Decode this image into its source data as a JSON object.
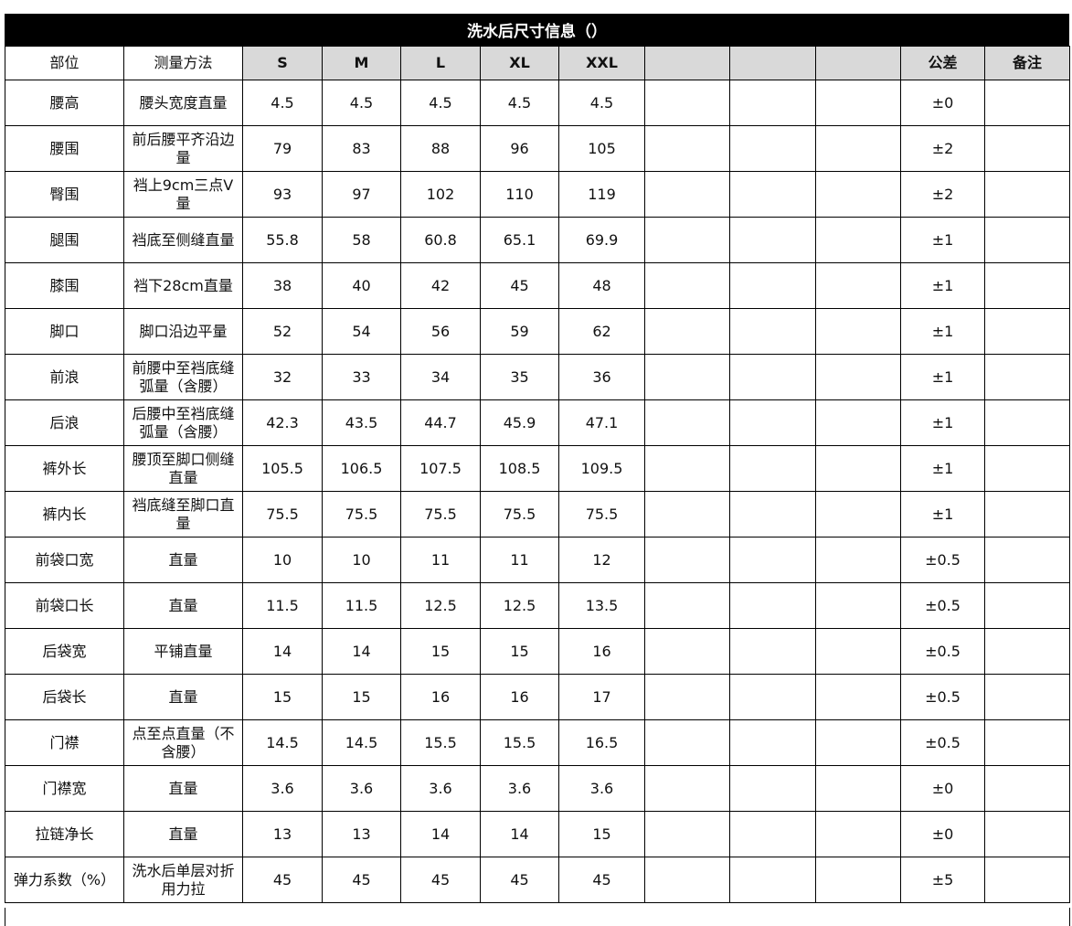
{
  "header": {
    "title": "洗水后尺寸信息（）"
  },
  "table": {
    "columns": [
      "部位",
      "测量方法",
      "S",
      "M",
      "L",
      "XL",
      "XXL",
      "公差",
      "备注"
    ],
    "rows": [
      [
        "腰高",
        "腰头宽度直量",
        4.5,
        4.5,
        4.5,
        4.5,
        4.5,
        "±0"
      ],
      [
        "腰围",
        "前后腰平齐沿边量",
        79,
        83,
        88,
        96,
        105,
        "±2"
      ],
      [
        "臀围",
        "裆上9cm三点V量",
        93,
        97,
        102,
        110,
        119,
        "±2"
      ],
      [
        "腿围",
        "裆底至侧缝直量",
        55.8,
        58,
        60.8,
        65.1,
        69.9,
        "±1"
      ],
      [
        "膝围",
        "裆下28cm直量",
        38,
        40,
        42,
        45,
        48,
        "±1"
      ],
      [
        "脚口",
        "脚口沿边平量",
        52,
        54,
        56,
        59,
        62,
        "±1"
      ],
      [
        "前浪",
        "前腰中至裆底缝弧量（含腰）",
        32,
        33,
        34,
        35,
        36,
        "±1"
      ],
      [
        "后浪",
        "后腰中至裆底缝弧量（含腰）",
        42.3,
        43.5,
        44.7,
        45.9,
        47.1,
        "±1"
      ],
      [
        "裤外长",
        "腰顶至脚口侧缝直量",
        105.5,
        106.5,
        107.5,
        108.5,
        109.5,
        "±1"
      ],
      [
        "裤内长",
        "裆底缝至脚口直量",
        75.5,
        75.5,
        75.5,
        75.5,
        75.5,
        "±1"
      ],
      [
        "前袋口宽",
        "直量",
        10,
        10,
        11,
        11,
        12,
        "±0.5"
      ],
      [
        "前袋口长",
        "直量",
        11.5,
        11.5,
        12.5,
        12.5,
        13.5,
        "±0.5"
      ],
      [
        "后袋宽",
        "平铺直量",
        14,
        14,
        15,
        15,
        16,
        "±0.5"
      ],
      [
        "后袋长",
        "直量",
        15,
        15,
        16,
        16,
        17,
        "±0.5"
      ],
      [
        "门襟",
        "点至点直量（不含腰）",
        14.5,
        14.5,
        15.5,
        15.5,
        16.5,
        "±0.5"
      ],
      [
        "门襟宽",
        "直量",
        3.6,
        3.6,
        3.6,
        3.6,
        3.6,
        "±0"
      ],
      [
        "拉链净长",
        "直量",
        13,
        13,
        14,
        14,
        15,
        "±0"
      ],
      [
        "弹力系数（%）",
        "洗水后单层对折用力拉",
        45,
        45,
        45,
        45,
        45,
        "±5"
      ]
    ]
  }
}
